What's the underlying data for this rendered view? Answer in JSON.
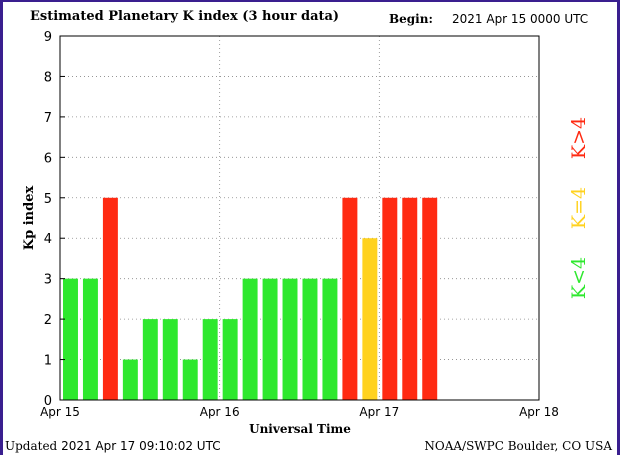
{
  "header": {
    "title": "Estimated Planetary K index (3 hour data)",
    "begin_label": "Begin:",
    "begin_value": "2021 Apr 15 0000 UTC"
  },
  "footer": {
    "updated_label": "Updated",
    "updated_value": "2021 Apr 17 09:10:02 UTC",
    "credit": "NOAA/SWPC Boulder, CO USA"
  },
  "legend": [
    {
      "label": "K<4",
      "color": "#2ee82e"
    },
    {
      "label": "K=4",
      "color": "#ffd21f"
    },
    {
      "label": "K>4",
      "color": "#ff2a12"
    }
  ],
  "chart_data": {
    "type": "bar",
    "title": "Estimated Planetary K index (3 hour data)",
    "xlabel": "Universal Time",
    "ylabel": "Kp index",
    "ylim": [
      0,
      9
    ],
    "yticks": [
      "0",
      "1",
      "2",
      "3",
      "4",
      "5",
      "6",
      "7",
      "8",
      "9"
    ],
    "xticks": [
      "Apr 15",
      "Apr 16",
      "Apr 17",
      "Apr 18"
    ],
    "bar_interval_hours": 3,
    "values": [
      3,
      3,
      5,
      1,
      2,
      2,
      1,
      2,
      2,
      3,
      3,
      3,
      3,
      3,
      5,
      4,
      5,
      5,
      5
    ],
    "colors": {
      "low": "#2ee82e",
      "mid": "#ffd21f",
      "high": "#ff2a12"
    },
    "grid": true
  }
}
